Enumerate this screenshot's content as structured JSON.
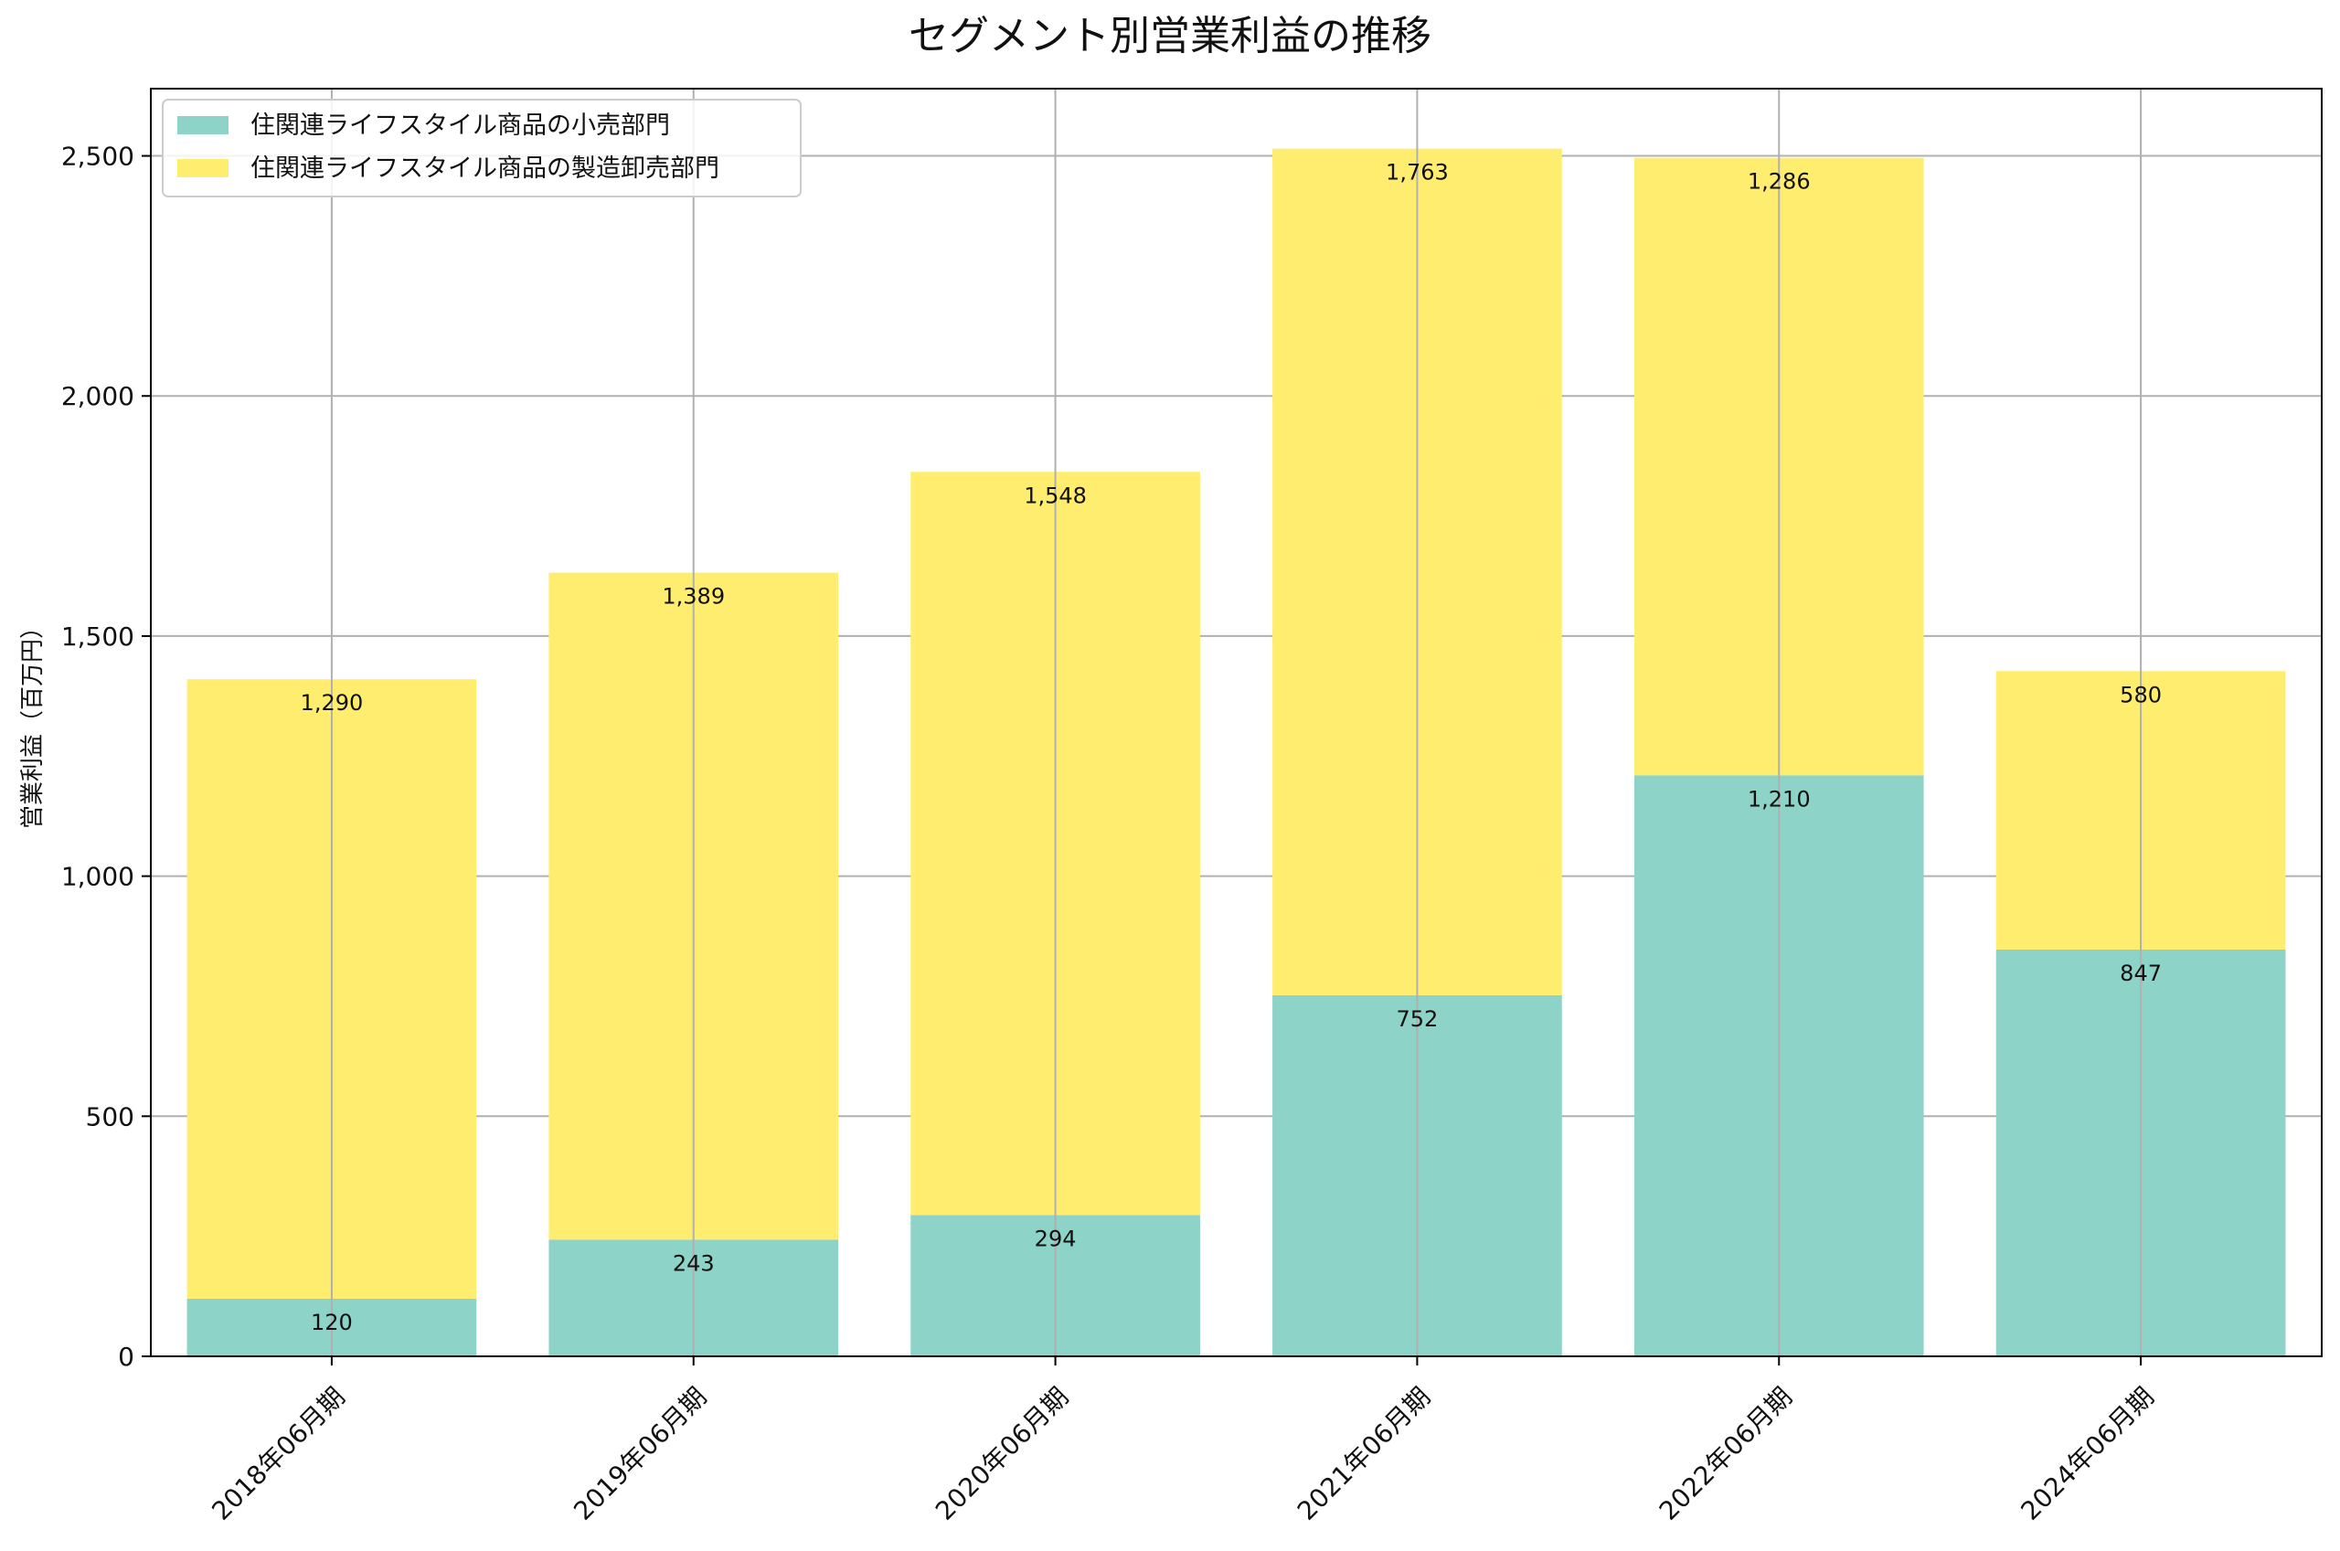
{
  "chart_data": {
    "type": "bar",
    "stacked": true,
    "title": "セグメント別営業利益の推移",
    "xlabel": "",
    "ylabel": "営業利益（百万円）",
    "ylim": [
      0,
      2640
    ],
    "yticks": [
      0,
      500,
      1000,
      1500,
      2000,
      2500
    ],
    "ytick_labels": [
      "0",
      "500",
      "1,000",
      "1,500",
      "2,000",
      "2,500"
    ],
    "grid": true,
    "legend_position": "top-left",
    "categories": [
      "2018年06月期",
      "2019年06月期",
      "2020年06月期",
      "2021年06月期",
      "2022年06月期",
      "2024年06月期"
    ],
    "series": [
      {
        "name": "住関連ライフスタイル商品の小売部門",
        "color": "#8dd3c7",
        "values": [
          120,
          243,
          294,
          752,
          1210,
          847
        ],
        "labels": [
          "120",
          "243",
          "294",
          "752",
          "1,210",
          "847"
        ]
      },
      {
        "name": "住関連ライフスタイル商品の製造卸売部門",
        "color": "#ffed6f",
        "values": [
          1290,
          1389,
          1548,
          1763,
          1286,
          580
        ],
        "labels": [
          "1,290",
          "1,389",
          "1,548",
          "1,763",
          "1,286",
          "580"
        ]
      }
    ]
  }
}
